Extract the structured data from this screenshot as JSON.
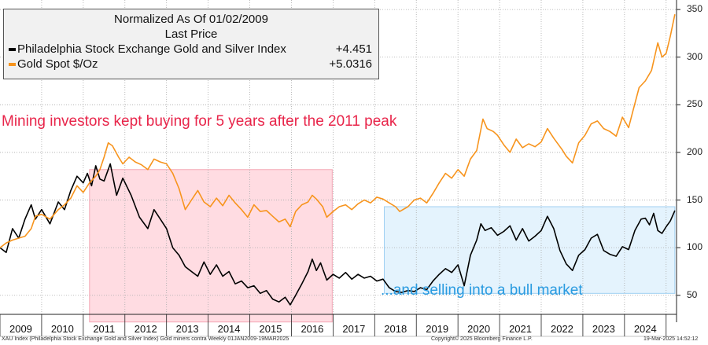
{
  "chart_data": {
    "type": "line",
    "title": "Normalized As Of 01/02/2009",
    "subtitle": "Last Price",
    "x_range": [
      2009.0,
      2025.21
    ],
    "y_range": [
      30,
      360
    ],
    "y_ticks": [
      50,
      100,
      150,
      200,
      250,
      300,
      350
    ],
    "x_tick_labels": [
      "2009",
      "2010",
      "2011",
      "2012",
      "2013",
      "2014",
      "2015",
      "2016",
      "2017",
      "2018",
      "2019",
      "2020",
      "2021",
      "2022",
      "2023",
      "2024"
    ],
    "series": [
      {
        "name": "Philadelphia Stock Exchange Gold and Silver Index",
        "last_value": "+4.451",
        "color": "#000000",
        "points": [
          [
            2009.0,
            100
          ],
          [
            2009.15,
            95
          ],
          [
            2009.3,
            120
          ],
          [
            2009.45,
            110
          ],
          [
            2009.6,
            130
          ],
          [
            2009.75,
            145
          ],
          [
            2009.85,
            130
          ],
          [
            2010.0,
            140
          ],
          [
            2010.2,
            125
          ],
          [
            2010.4,
            148
          ],
          [
            2010.55,
            140
          ],
          [
            2010.7,
            160
          ],
          [
            2010.85,
            175
          ],
          [
            2011.0,
            168
          ],
          [
            2011.1,
            178
          ],
          [
            2011.2,
            165
          ],
          [
            2011.3,
            186
          ],
          [
            2011.4,
            172
          ],
          [
            2011.5,
            170
          ],
          [
            2011.65,
            188
          ],
          [
            2011.8,
            155
          ],
          [
            2011.95,
            173
          ],
          [
            2012.15,
            155
          ],
          [
            2012.35,
            132
          ],
          [
            2012.55,
            120
          ],
          [
            2012.7,
            140
          ],
          [
            2012.85,
            130
          ],
          [
            2013.0,
            120
          ],
          [
            2013.15,
            100
          ],
          [
            2013.3,
            92
          ],
          [
            2013.45,
            80
          ],
          [
            2013.6,
            75
          ],
          [
            2013.75,
            70
          ],
          [
            2013.9,
            85
          ],
          [
            2014.05,
            72
          ],
          [
            2014.2,
            82
          ],
          [
            2014.35,
            70
          ],
          [
            2014.5,
            75
          ],
          [
            2014.65,
            62
          ],
          [
            2014.8,
            65
          ],
          [
            2014.95,
            58
          ],
          [
            2015.1,
            60
          ],
          [
            2015.25,
            52
          ],
          [
            2015.4,
            55
          ],
          [
            2015.55,
            46
          ],
          [
            2015.7,
            43
          ],
          [
            2015.85,
            48
          ],
          [
            2015.97,
            40
          ],
          [
            2016.1,
            50
          ],
          [
            2016.25,
            62
          ],
          [
            2016.4,
            75
          ],
          [
            2016.5,
            88
          ],
          [
            2016.6,
            76
          ],
          [
            2016.7,
            84
          ],
          [
            2016.85,
            66
          ],
          [
            2017.0,
            72
          ],
          [
            2017.15,
            68
          ],
          [
            2017.3,
            74
          ],
          [
            2017.45,
            67
          ],
          [
            2017.6,
            72
          ],
          [
            2017.75,
            68
          ],
          [
            2017.9,
            70
          ],
          [
            2018.05,
            65
          ],
          [
            2018.2,
            67
          ],
          [
            2018.35,
            58
          ],
          [
            2018.5,
            54
          ],
          [
            2018.65,
            53
          ],
          [
            2018.8,
            55
          ],
          [
            2018.95,
            54
          ],
          [
            2019.1,
            58
          ],
          [
            2019.25,
            56
          ],
          [
            2019.4,
            65
          ],
          [
            2019.55,
            72
          ],
          [
            2019.7,
            78
          ],
          [
            2019.85,
            74
          ],
          [
            2020.0,
            82
          ],
          [
            2020.15,
            60
          ],
          [
            2020.3,
            92
          ],
          [
            2020.45,
            108
          ],
          [
            2020.55,
            125
          ],
          [
            2020.65,
            118
          ],
          [
            2020.8,
            121
          ],
          [
            2020.95,
            113
          ],
          [
            2021.1,
            117
          ],
          [
            2021.25,
            123
          ],
          [
            2021.4,
            108
          ],
          [
            2021.55,
            120
          ],
          [
            2021.7,
            107
          ],
          [
            2021.85,
            112
          ],
          [
            2022.0,
            118
          ],
          [
            2022.15,
            133
          ],
          [
            2022.3,
            120
          ],
          [
            2022.45,
            97
          ],
          [
            2022.6,
            83
          ],
          [
            2022.75,
            76
          ],
          [
            2022.9,
            92
          ],
          [
            2023.05,
            98
          ],
          [
            2023.2,
            110
          ],
          [
            2023.35,
            114
          ],
          [
            2023.5,
            97
          ],
          [
            2023.65,
            93
          ],
          [
            2023.8,
            91
          ],
          [
            2023.95,
            101
          ],
          [
            2024.1,
            98
          ],
          [
            2024.25,
            118
          ],
          [
            2024.4,
            130
          ],
          [
            2024.5,
            131
          ],
          [
            2024.6,
            124
          ],
          [
            2024.7,
            136
          ],
          [
            2024.8,
            118
          ],
          [
            2024.9,
            115
          ],
          [
            2025.0,
            122
          ],
          [
            2025.1,
            128
          ],
          [
            2025.21,
            139
          ]
        ]
      },
      {
        "name": "Gold Spot $/Oz",
        "last_value": "+5.0316",
        "color": "#f7941d",
        "points": [
          [
            2009.0,
            100
          ],
          [
            2009.15,
            105
          ],
          [
            2009.3,
            108
          ],
          [
            2009.45,
            110
          ],
          [
            2009.6,
            112
          ],
          [
            2009.75,
            120
          ],
          [
            2009.85,
            133
          ],
          [
            2010.0,
            135
          ],
          [
            2010.2,
            130
          ],
          [
            2010.4,
            140
          ],
          [
            2010.55,
            145
          ],
          [
            2010.7,
            152
          ],
          [
            2010.85,
            165
          ],
          [
            2011.0,
            158
          ],
          [
            2011.15,
            168
          ],
          [
            2011.3,
            175
          ],
          [
            2011.4,
            182
          ],
          [
            2011.5,
            195
          ],
          [
            2011.6,
            210
          ],
          [
            2011.7,
            207
          ],
          [
            2011.85,
            195
          ],
          [
            2011.95,
            188
          ],
          [
            2012.1,
            195
          ],
          [
            2012.25,
            190
          ],
          [
            2012.4,
            187
          ],
          [
            2012.55,
            182
          ],
          [
            2012.7,
            193
          ],
          [
            2012.85,
            190
          ],
          [
            2013.0,
            188
          ],
          [
            2013.15,
            178
          ],
          [
            2013.3,
            162
          ],
          [
            2013.45,
            140
          ],
          [
            2013.6,
            150
          ],
          [
            2013.75,
            160
          ],
          [
            2013.9,
            148
          ],
          [
            2014.05,
            143
          ],
          [
            2014.2,
            152
          ],
          [
            2014.35,
            144
          ],
          [
            2014.5,
            155
          ],
          [
            2014.65,
            147
          ],
          [
            2014.8,
            140
          ],
          [
            2014.95,
            132
          ],
          [
            2015.1,
            145
          ],
          [
            2015.25,
            138
          ],
          [
            2015.4,
            139
          ],
          [
            2015.55,
            133
          ],
          [
            2015.7,
            127
          ],
          [
            2015.85,
            130
          ],
          [
            2015.97,
            122
          ],
          [
            2016.1,
            138
          ],
          [
            2016.25,
            145
          ],
          [
            2016.4,
            148
          ],
          [
            2016.5,
            155
          ],
          [
            2016.6,
            151
          ],
          [
            2016.75,
            143
          ],
          [
            2016.85,
            132
          ],
          [
            2017.0,
            138
          ],
          [
            2017.15,
            143
          ],
          [
            2017.3,
            145
          ],
          [
            2017.45,
            140
          ],
          [
            2017.6,
            146
          ],
          [
            2017.75,
            150
          ],
          [
            2017.9,
            147
          ],
          [
            2018.05,
            153
          ],
          [
            2018.2,
            151
          ],
          [
            2018.35,
            147
          ],
          [
            2018.5,
            143
          ],
          [
            2018.6,
            138
          ],
          [
            2018.8,
            143
          ],
          [
            2018.95,
            150
          ],
          [
            2019.1,
            152
          ],
          [
            2019.25,
            147
          ],
          [
            2019.4,
            157
          ],
          [
            2019.55,
            168
          ],
          [
            2019.7,
            178
          ],
          [
            2019.85,
            173
          ],
          [
            2020.0,
            182
          ],
          [
            2020.15,
            175
          ],
          [
            2020.3,
            193
          ],
          [
            2020.45,
            202
          ],
          [
            2020.6,
            235
          ],
          [
            2020.7,
            225
          ],
          [
            2020.85,
            222
          ],
          [
            2020.95,
            218
          ],
          [
            2021.1,
            208
          ],
          [
            2021.25,
            200
          ],
          [
            2021.4,
            214
          ],
          [
            2021.55,
            205
          ],
          [
            2021.7,
            209
          ],
          [
            2021.85,
            206
          ],
          [
            2022.0,
            211
          ],
          [
            2022.15,
            225
          ],
          [
            2022.3,
            215
          ],
          [
            2022.5,
            203
          ],
          [
            2022.6,
            196
          ],
          [
            2022.75,
            189
          ],
          [
            2022.9,
            210
          ],
          [
            2023.05,
            218
          ],
          [
            2023.2,
            230
          ],
          [
            2023.35,
            233
          ],
          [
            2023.5,
            225
          ],
          [
            2023.65,
            222
          ],
          [
            2023.8,
            217
          ],
          [
            2023.95,
            237
          ],
          [
            2024.1,
            226
          ],
          [
            2024.2,
            243
          ],
          [
            2024.35,
            268
          ],
          [
            2024.5,
            275
          ],
          [
            2024.65,
            286
          ],
          [
            2024.8,
            315
          ],
          [
            2024.9,
            300
          ],
          [
            2025.0,
            304
          ],
          [
            2025.1,
            322
          ],
          [
            2025.21,
            345
          ]
        ]
      }
    ],
    "highlight_boxes": [
      {
        "name": "pink",
        "x_range": [
          2011.15,
          2016.98
        ],
        "y_range": [
          22,
          182
        ],
        "color": "#ffc0cb"
      },
      {
        "name": "blue",
        "x_range": [
          2018.23,
          2025.21
        ],
        "y_range": [
          52,
          143
        ],
        "color": "#cde9fb"
      }
    ]
  },
  "legend": {
    "header1": "Normalized As Of 01/02/2009",
    "header2": "Last Price",
    "series1_label": "Philadelphia Stock Exchange Gold and Silver Index",
    "series1_value": "+4.451",
    "series2_label": "Gold Spot $/Oz",
    "series2_value": "+5.0316"
  },
  "annotations": {
    "red_text": "Mining investors kept buying for 5 years after the 2011 peak",
    "blue_text": "...and selling into a bull market"
  },
  "footer": {
    "left": "XAU Index (Philadelphia Stock Exchange Gold and Silver Index) Gold miners contra  Weekly 01JAN2009-19MAR2025",
    "center": "Copyright© 2025 Bloomberg Finance L.P.",
    "right": "19-Mar-2025 14:52:12"
  }
}
